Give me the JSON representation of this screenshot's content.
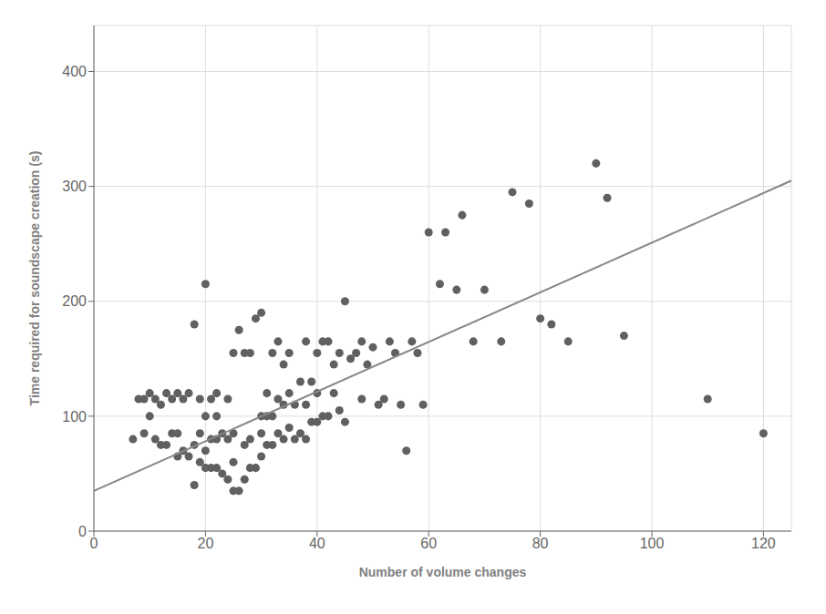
{
  "chart_data": {
    "type": "scatter",
    "xlabel": "Number of volume changes",
    "ylabel": "Time required for soundscape creation (s)",
    "xlim": [
      0,
      125
    ],
    "ylim": [
      0,
      440
    ],
    "xticks": [
      0,
      20,
      40,
      60,
      80,
      100,
      120
    ],
    "yticks": [
      0,
      100,
      200,
      300,
      400
    ],
    "grid": true,
    "series": [
      {
        "type": "scatter",
        "color": "#606060",
        "x": [
          7,
          8,
          9,
          9,
          10,
          10,
          11,
          11,
          12,
          12,
          13,
          13,
          14,
          14,
          15,
          15,
          15,
          16,
          16,
          17,
          17,
          18,
          18,
          18,
          19,
          19,
          19,
          20,
          20,
          20,
          20,
          21,
          21,
          21,
          22,
          22,
          22,
          22,
          23,
          23,
          24,
          24,
          24,
          25,
          25,
          25,
          25,
          26,
          26,
          27,
          27,
          27,
          28,
          28,
          28,
          29,
          29,
          30,
          30,
          30,
          30,
          31,
          31,
          31,
          32,
          32,
          32,
          33,
          33,
          33,
          34,
          34,
          34,
          35,
          35,
          35,
          36,
          36,
          37,
          37,
          38,
          38,
          38,
          39,
          39,
          40,
          40,
          40,
          41,
          41,
          42,
          42,
          43,
          43,
          44,
          44,
          45,
          45,
          46,
          47,
          48,
          48,
          49,
          50,
          51,
          52,
          53,
          54,
          55,
          56,
          57,
          58,
          59,
          60,
          62,
          63,
          65,
          66,
          68,
          70,
          73,
          75,
          78,
          80,
          82,
          85,
          90,
          92,
          95,
          110,
          120
        ],
        "values": [
          80,
          115,
          85,
          115,
          100,
          120,
          80,
          115,
          75,
          110,
          75,
          120,
          85,
          115,
          65,
          85,
          120,
          70,
          115,
          65,
          120,
          40,
          75,
          180,
          60,
          85,
          115,
          55,
          70,
          100,
          215,
          55,
          80,
          115,
          55,
          80,
          100,
          120,
          50,
          85,
          45,
          80,
          115,
          35,
          60,
          85,
          155,
          35,
          175,
          45,
          75,
          155,
          55,
          80,
          155,
          55,
          185,
          65,
          85,
          100,
          190,
          75,
          100,
          120,
          75,
          100,
          155,
          85,
          115,
          165,
          80,
          110,
          145,
          90,
          120,
          155,
          80,
          110,
          85,
          130,
          80,
          110,
          165,
          95,
          130,
          95,
          120,
          155,
          100,
          165,
          100,
          165,
          120,
          145,
          105,
          155,
          95,
          200,
          150,
          155,
          115,
          165,
          145,
          160,
          110,
          115,
          165,
          155,
          110,
          70,
          165,
          155,
          110,
          260,
          215,
          260,
          210,
          275,
          165,
          210,
          165,
          295,
          285,
          185,
          180,
          165,
          320,
          290,
          170,
          115,
          85
        ]
      },
      {
        "type": "line",
        "color": "#888888",
        "x": [
          0,
          125
        ],
        "values": [
          35,
          305
        ]
      }
    ]
  }
}
